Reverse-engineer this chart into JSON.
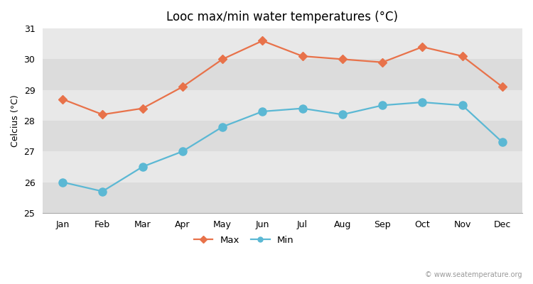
{
  "months": [
    "Jan",
    "Feb",
    "Mar",
    "Apr",
    "May",
    "Jun",
    "Jul",
    "Aug",
    "Sep",
    "Oct",
    "Nov",
    "Dec"
  ],
  "max_temps": [
    28.7,
    28.2,
    28.4,
    29.1,
    30.0,
    30.6,
    30.1,
    30.0,
    29.9,
    30.4,
    30.1,
    29.1
  ],
  "min_temps": [
    26.0,
    25.7,
    26.5,
    27.0,
    27.8,
    28.3,
    28.4,
    28.2,
    28.5,
    28.6,
    28.5,
    27.3
  ],
  "max_color": "#E8724A",
  "min_color": "#5BB8D4",
  "title": "Looc max/min water temperatures (°C)",
  "ylabel": "Celcius (°C)",
  "ylim": [
    25,
    31
  ],
  "yticks": [
    25,
    26,
    27,
    28,
    29,
    30,
    31
  ],
  "bg_color_dark": "#DCDCDC",
  "bg_color_light": "#E8E8E8",
  "watermark": "© www.seatemperature.org",
  "marker_size_max": 6,
  "marker_size_min": 8,
  "line_width": 1.6,
  "title_fontsize": 12,
  "label_fontsize": 9,
  "tick_fontsize": 9
}
